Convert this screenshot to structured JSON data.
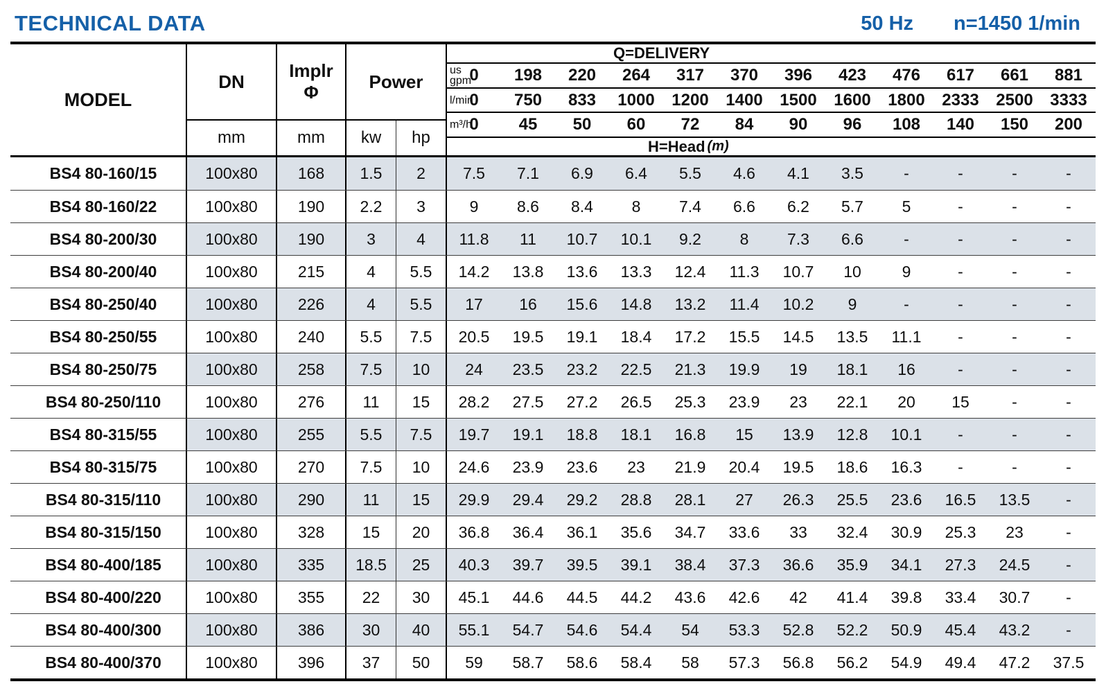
{
  "colors": {
    "accent_blue": "#1560a8",
    "row_stripe": "#dbe1e8"
  },
  "header": {
    "title": "TECHNICAL DATA",
    "frequency": "50 Hz",
    "speed": "n=1450 1/min"
  },
  "table": {
    "model_header": "MODEL",
    "dn_header": "DN",
    "dn_unit": "mm",
    "implr_line1": "Implr",
    "implr_line2": "Φ",
    "implr_unit": "mm",
    "power_header": "Power",
    "power_kw": "kw",
    "power_hp": "hp",
    "delivery_header": "Q=DELIVERY",
    "head_label": "H=Head",
    "head_unit": "(m)",
    "flow_rows": [
      {
        "label_lines": [
          "us",
          "gpm"
        ],
        "values": [
          "0",
          "198",
          "220",
          "264",
          "317",
          "370",
          "396",
          "423",
          "476",
          "617",
          "661",
          "881"
        ]
      },
      {
        "label_lines": [
          "l/min"
        ],
        "values": [
          "0",
          "750",
          "833",
          "1000",
          "1200",
          "1400",
          "1500",
          "1600",
          "1800",
          "2333",
          "2500",
          "3333"
        ]
      },
      {
        "label_lines": [
          "m³/h"
        ],
        "values": [
          "0",
          "45",
          "50",
          "60",
          "72",
          "84",
          "90",
          "96",
          "108",
          "140",
          "150",
          "200"
        ]
      }
    ],
    "rows": [
      {
        "model": "BS4 80-160/15",
        "dn": "100x80",
        "implr": "168",
        "kw": "1.5",
        "hp": "2",
        "head": [
          "7.5",
          "7.1",
          "6.9",
          "6.4",
          "5.5",
          "4.6",
          "4.1",
          "3.5",
          "-",
          "-",
          "-",
          "-"
        ]
      },
      {
        "model": "BS4 80-160/22",
        "dn": "100x80",
        "implr": "190",
        "kw": "2.2",
        "hp": "3",
        "head": [
          "9",
          "8.6",
          "8.4",
          "8",
          "7.4",
          "6.6",
          "6.2",
          "5.7",
          "5",
          "-",
          "-",
          "-"
        ]
      },
      {
        "model": "BS4 80-200/30",
        "dn": "100x80",
        "implr": "190",
        "kw": "3",
        "hp": "4",
        "head": [
          "11.8",
          "11",
          "10.7",
          "10.1",
          "9.2",
          "8",
          "7.3",
          "6.6",
          "-",
          "-",
          "-",
          "-"
        ]
      },
      {
        "model": "BS4 80-200/40",
        "dn": "100x80",
        "implr": "215",
        "kw": "4",
        "hp": "5.5",
        "head": [
          "14.2",
          "13.8",
          "13.6",
          "13.3",
          "12.4",
          "11.3",
          "10.7",
          "10",
          "9",
          "-",
          "-",
          "-"
        ]
      },
      {
        "model": "BS4 80-250/40",
        "dn": "100x80",
        "implr": "226",
        "kw": "4",
        "hp": "5.5",
        "head": [
          "17",
          "16",
          "15.6",
          "14.8",
          "13.2",
          "11.4",
          "10.2",
          "9",
          "-",
          "-",
          "-",
          "-"
        ]
      },
      {
        "model": "BS4 80-250/55",
        "dn": "100x80",
        "implr": "240",
        "kw": "5.5",
        "hp": "7.5",
        "head": [
          "20.5",
          "19.5",
          "19.1",
          "18.4",
          "17.2",
          "15.5",
          "14.5",
          "13.5",
          "11.1",
          "-",
          "-",
          "-"
        ]
      },
      {
        "model": "BS4 80-250/75",
        "dn": "100x80",
        "implr": "258",
        "kw": "7.5",
        "hp": "10",
        "head": [
          "24",
          "23.5",
          "23.2",
          "22.5",
          "21.3",
          "19.9",
          "19",
          "18.1",
          "16",
          "-",
          "-",
          "-"
        ]
      },
      {
        "model": "BS4 80-250/110",
        "dn": "100x80",
        "implr": "276",
        "kw": "11",
        "hp": "15",
        "head": [
          "28.2",
          "27.5",
          "27.2",
          "26.5",
          "25.3",
          "23.9",
          "23",
          "22.1",
          "20",
          "15",
          "-",
          "-"
        ]
      },
      {
        "model": "BS4 80-315/55",
        "dn": "100x80",
        "implr": "255",
        "kw": "5.5",
        "hp": "7.5",
        "head": [
          "19.7",
          "19.1",
          "18.8",
          "18.1",
          "16.8",
          "15",
          "13.9",
          "12.8",
          "10.1",
          "-",
          "-",
          "-"
        ]
      },
      {
        "model": "BS4 80-315/75",
        "dn": "100x80",
        "implr": "270",
        "kw": "7.5",
        "hp": "10",
        "head": [
          "24.6",
          "23.9",
          "23.6",
          "23",
          "21.9",
          "20.4",
          "19.5",
          "18.6",
          "16.3",
          "-",
          "-",
          "-"
        ]
      },
      {
        "model": "BS4 80-315/110",
        "dn": "100x80",
        "implr": "290",
        "kw": "11",
        "hp": "15",
        "head": [
          "29.9",
          "29.4",
          "29.2",
          "28.8",
          "28.1",
          "27",
          "26.3",
          "25.5",
          "23.6",
          "16.5",
          "13.5",
          "-"
        ]
      },
      {
        "model": "BS4 80-315/150",
        "dn": "100x80",
        "implr": "328",
        "kw": "15",
        "hp": "20",
        "head": [
          "36.8",
          "36.4",
          "36.1",
          "35.6",
          "34.7",
          "33.6",
          "33",
          "32.4",
          "30.9",
          "25.3",
          "23",
          "-"
        ]
      },
      {
        "model": "BS4 80-400/185",
        "dn": "100x80",
        "implr": "335",
        "kw": "18.5",
        "hp": "25",
        "head": [
          "40.3",
          "39.7",
          "39.5",
          "39.1",
          "38.4",
          "37.3",
          "36.6",
          "35.9",
          "34.1",
          "27.3",
          "24.5",
          "-"
        ]
      },
      {
        "model": "BS4 80-400/220",
        "dn": "100x80",
        "implr": "355",
        "kw": "22",
        "hp": "30",
        "head": [
          "45.1",
          "44.6",
          "44.5",
          "44.2",
          "43.6",
          "42.6",
          "42",
          "41.4",
          "39.8",
          "33.4",
          "30.7",
          "-"
        ]
      },
      {
        "model": "BS4 80-400/300",
        "dn": "100x80",
        "implr": "386",
        "kw": "30",
        "hp": "40",
        "head": [
          "55.1",
          "54.7",
          "54.6",
          "54.4",
          "54",
          "53.3",
          "52.8",
          "52.2",
          "50.9",
          "45.4",
          "43.2",
          "-"
        ]
      },
      {
        "model": "BS4 80-400/370",
        "dn": "100x80",
        "implr": "396",
        "kw": "37",
        "hp": "50",
        "head": [
          "59",
          "58.7",
          "58.6",
          "58.4",
          "58",
          "57.3",
          "56.8",
          "56.2",
          "54.9",
          "49.4",
          "47.2",
          "37.5"
        ]
      }
    ]
  }
}
